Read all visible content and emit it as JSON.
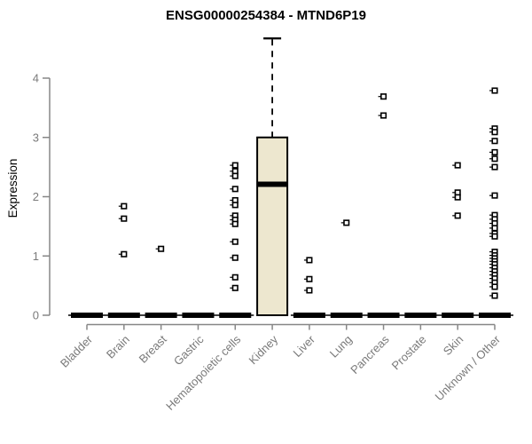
{
  "chart_data": {
    "type": "boxplot",
    "title": "ENSG00000254384 - MTND6P19",
    "ylabel": "Expression",
    "ylim": [
      0,
      4.8
    ],
    "yticks": [
      0,
      1,
      2,
      3,
      4
    ],
    "categories": [
      "Bladder",
      "Brain",
      "Breast",
      "Gastric",
      "Hematopoietic cells",
      "Kidney",
      "Liver",
      "Lung",
      "Pancreas",
      "Prostate",
      "Skin",
      "Unknown / Other"
    ],
    "boxes": [
      {
        "category": "Bladder",
        "q1": 0,
        "median": 0,
        "q3": 0,
        "whisker_low": 0,
        "whisker_high": 0,
        "outliers": []
      },
      {
        "category": "Brain",
        "q1": 0,
        "median": 0,
        "q3": 0,
        "whisker_low": 0,
        "whisker_high": 0,
        "outliers": [
          1.84,
          1.63,
          1.03
        ]
      },
      {
        "category": "Breast",
        "q1": 0,
        "median": 0,
        "q3": 0,
        "whisker_low": 0,
        "whisker_high": 0,
        "outliers": [
          1.12
        ]
      },
      {
        "category": "Gastric",
        "q1": 0,
        "median": 0,
        "q3": 0,
        "whisker_low": 0,
        "whisker_high": 0,
        "outliers": []
      },
      {
        "category": "Hematopoietic cells",
        "q1": 0,
        "median": 0,
        "q3": 0,
        "whisker_low": 0,
        "whisker_high": 0,
        "outliers": [
          2.53,
          2.43,
          2.35,
          2.13,
          1.94,
          1.86,
          1.68,
          1.61,
          1.54,
          1.24,
          0.97,
          0.64,
          0.46
        ]
      },
      {
        "category": "Kidney",
        "q1": 0,
        "median": 2.21,
        "q3": 3.0,
        "whisker_low": 0,
        "whisker_high": 4.67,
        "outliers": []
      },
      {
        "category": "Liver",
        "q1": 0,
        "median": 0,
        "q3": 0,
        "whisker_low": 0,
        "whisker_high": 0,
        "outliers": [
          0.93,
          0.61,
          0.42
        ]
      },
      {
        "category": "Lung",
        "q1": 0,
        "median": 0,
        "q3": 0,
        "whisker_low": 0,
        "whisker_high": 0,
        "outliers": [
          1.56
        ]
      },
      {
        "category": "Pancreas",
        "q1": 0,
        "median": 0,
        "q3": 0,
        "whisker_low": 0,
        "whisker_high": 0,
        "outliers": [
          3.69,
          3.37
        ]
      },
      {
        "category": "Prostate",
        "q1": 0,
        "median": 0,
        "q3": 0,
        "whisker_low": 0,
        "whisker_high": 0,
        "outliers": []
      },
      {
        "category": "Skin",
        "q1": 0,
        "median": 0,
        "q3": 0,
        "whisker_low": 0,
        "whisker_high": 0,
        "outliers": [
          2.53,
          2.07,
          1.99,
          1.68
        ]
      },
      {
        "category": "Unknown / Other",
        "q1": 0,
        "median": 0,
        "q3": 0,
        "whisker_low": 0,
        "whisker_high": 0,
        "outliers": [
          3.79,
          3.15,
          3.09,
          2.94,
          2.75,
          2.64,
          2.5,
          2.02,
          1.69,
          1.62,
          1.55,
          1.47,
          1.38,
          1.33,
          1.07,
          1.01,
          0.96,
          0.91,
          0.86,
          0.8,
          0.74,
          0.68,
          0.62,
          0.55,
          0.48,
          0.33
        ]
      }
    ],
    "colors": {
      "box_fill": "#ede7cf",
      "box_border": "#000000",
      "median": "#000000",
      "whisker": "#000000",
      "outlier_fill": "#ffffff",
      "outlier_border": "#000000",
      "axis": "#878787",
      "tick_label": "#7a7a7a",
      "title": "#000000",
      "background": "#ffffff"
    },
    "layout": {
      "grid": false,
      "x_label_rotation": 45,
      "legend": "none"
    }
  }
}
